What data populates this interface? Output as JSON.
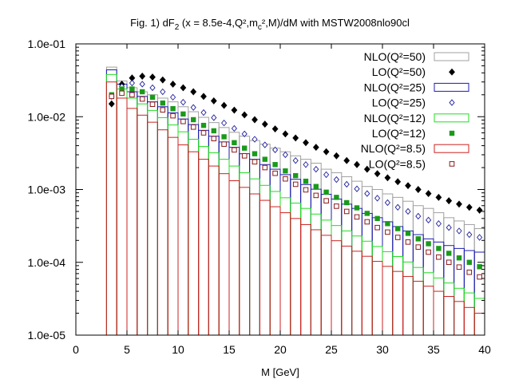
{
  "chart_data": {
    "type": "bar",
    "title": "Fig. 1) dF",
    "title_sub": "2",
    "title_rest": " (x = 8.5e-4,Q²,m",
    "title_sub2": "c",
    "title_end": "²,M)/dM with MSTW2008nlo90cl",
    "xlabel": "M [GeV]",
    "ylabel": "",
    "xlim": [
      0,
      40
    ],
    "ylim": [
      1e-05,
      0.1
    ],
    "y_scale": "log",
    "x_ticks": [
      "0",
      "5",
      "10",
      "15",
      "20",
      "25",
      "30",
      "35",
      "40"
    ],
    "y_ticks": [
      "1.0e-05",
      "1.0e-04",
      "1.0e-03",
      "1.0e-02",
      "1.0e-01"
    ],
    "legend_position": "top-right",
    "bin_edges": [
      3,
      4,
      5,
      6,
      7,
      8,
      9,
      10,
      11,
      12,
      13,
      14,
      15,
      16,
      17,
      18,
      19,
      20,
      21,
      22,
      23,
      24,
      25,
      26,
      27,
      28,
      29,
      30,
      31,
      32,
      33,
      34,
      35,
      36,
      37,
      38,
      39,
      40
    ],
    "lo_x": [
      3.5,
      4.5,
      5.5,
      6.5,
      7.5,
      8.5,
      9.5,
      10.5,
      11.5,
      12.5,
      13.5,
      14.5,
      15.5,
      16.5,
      17.5,
      18.5,
      19.5,
      20.5,
      21.5,
      22.5,
      23.5,
      24.5,
      25.5,
      26.5,
      27.5,
      28.5,
      29.5,
      30.5,
      31.5,
      32.5,
      33.5,
      34.5,
      35.5,
      36.5,
      37.5,
      38.5,
      39.5
    ],
    "series": [
      {
        "name": "NLO(Q²=50)",
        "kind": "nlo",
        "color": "#a0a0a0",
        "values": [
          0.048,
          0.031,
          0.025,
          0.022,
          0.02,
          0.018,
          0.016,
          0.0137,
          0.0117,
          0.0098,
          0.0083,
          0.0071,
          0.0061,
          0.0054,
          0.0047,
          0.0042,
          0.0037,
          0.0033,
          0.0029,
          0.0026,
          0.0023,
          0.0019,
          0.0017,
          0.0015,
          0.0013,
          0.0011,
          0.001,
          0.00087,
          0.00078,
          0.00069,
          0.0006,
          0.00055,
          0.00048,
          0.00041,
          0.00037,
          0.00033,
          0.00029
        ]
      },
      {
        "name": "LO(Q²=50)",
        "kind": "lo",
        "marker": "diamond-filled",
        "color": "#000000",
        "values": [
          0.015,
          0.028,
          0.034,
          0.036,
          0.035,
          0.032,
          0.028,
          0.025,
          0.022,
          0.019,
          0.0165,
          0.0143,
          0.0123,
          0.0106,
          0.0091,
          0.0079,
          0.0068,
          0.0058,
          0.0051,
          0.0044,
          0.0038,
          0.0033,
          0.0029,
          0.0025,
          0.0022,
          0.0019,
          0.00165,
          0.00145,
          0.00128,
          0.00113,
          0.001,
          0.00088,
          0.00078,
          0.0007,
          0.00063,
          0.00057,
          0.00052
        ]
      },
      {
        "name": "NLO(Q²=25)",
        "kind": "nlo",
        "color": "#1c1cb0",
        "values": [
          0.044,
          0.028,
          0.022,
          0.019,
          0.016,
          0.0137,
          0.0113,
          0.0093,
          0.0078,
          0.0065,
          0.0054,
          0.0045,
          0.0038,
          0.0031,
          0.0026,
          0.0022,
          0.0019,
          0.0016,
          0.00138,
          0.00117,
          0.00101,
          0.00086,
          0.00074,
          0.00063,
          0.00055,
          0.00047,
          0.00041,
          0.00036,
          0.00031,
          0.00027,
          0.00024,
          0.00021,
          0.00019,
          0.00017,
          0.000155,
          0.000145,
          0.000138
        ]
      },
      {
        "name": "LO(Q²=25)",
        "kind": "lo",
        "marker": "diamond-open",
        "color": "#2020a0",
        "values": [
          0.019,
          0.026,
          0.029,
          0.028,
          0.025,
          0.022,
          0.0185,
          0.0158,
          0.0134,
          0.0114,
          0.0097,
          0.0082,
          0.0069,
          0.0058,
          0.0049,
          0.0041,
          0.0035,
          0.003,
          0.0025,
          0.0022,
          0.0019,
          0.0016,
          0.00137,
          0.00118,
          0.00102,
          0.00088,
          0.00076,
          0.00066,
          0.00057,
          0.0005,
          0.00043,
          0.00038,
          0.00034,
          0.0003,
          0.00027,
          0.00024,
          0.00022
        ]
      },
      {
        "name": "NLO(Q²=12)",
        "kind": "nlo",
        "color": "#22dd22",
        "values": [
          0.038,
          0.024,
          0.018,
          0.015,
          0.0122,
          0.0097,
          0.0077,
          0.0062,
          0.0049,
          0.0039,
          0.0032,
          0.0026,
          0.0021,
          0.0017,
          0.0014,
          0.00114,
          0.00094,
          0.00077,
          0.00065,
          0.00055,
          0.00046,
          0.00038,
          0.00032,
          0.00027,
          0.00023,
          0.000195,
          0.000165,
          0.00014,
          0.00012,
          0.000101,
          8.5e-05,
          7.2e-05,
          6.1e-05,
          5.2e-05,
          4.4e-05,
          3.8e-05,
          3.2e-05
        ]
      },
      {
        "name": "LO(Q²=12)",
        "kind": "lo",
        "marker": "square-filled",
        "color": "#1a9a1a",
        "values": [
          0.02,
          0.024,
          0.024,
          0.022,
          0.0185,
          0.0154,
          0.0129,
          0.0109,
          0.0091,
          0.0076,
          0.0064,
          0.0053,
          0.0044,
          0.0037,
          0.0031,
          0.0026,
          0.0022,
          0.0018,
          0.00155,
          0.0013,
          0.0011,
          0.00092,
          0.00078,
          0.00066,
          0.00056,
          0.00047,
          0.0004,
          0.00034,
          0.00029,
          0.00025,
          0.00021,
          0.00018,
          0.000155,
          0.000133,
          0.000115,
          0.0001,
          8.7e-05
        ]
      },
      {
        "name": "NLO(Q²=8.5)",
        "kind": "nlo",
        "color": "#cc2222",
        "values": [
          0.03,
          0.018,
          0.013,
          0.0105,
          0.0084,
          0.0066,
          0.0052,
          0.0041,
          0.0033,
          0.0026,
          0.0021,
          0.00165,
          0.00132,
          0.00107,
          0.00087,
          0.00071,
          0.00058,
          0.00048,
          0.0004,
          0.00033,
          0.00028,
          0.000235,
          0.000198,
          0.000167,
          0.000142,
          0.000121,
          0.000103,
          8.8e-05,
          7.5e-05,
          6.4e-05,
          5.5e-05,
          4.7e-05,
          4e-05,
          3.4e-05,
          2.9e-05,
          2.4e-05,
          2e-05
        ]
      },
      {
        "name": "LO(Q²=8.5)",
        "kind": "lo",
        "marker": "square-open",
        "color": "#8b1a1a",
        "values": [
          0.019,
          0.021,
          0.02,
          0.0175,
          0.0148,
          0.0124,
          0.0103,
          0.0086,
          0.0072,
          0.006,
          0.005,
          0.0042,
          0.0035,
          0.0029,
          0.0024,
          0.002,
          0.00167,
          0.0014,
          0.00118,
          0.00099,
          0.00083,
          0.0007,
          0.00059,
          0.0005,
          0.00042,
          0.00036,
          0.0003,
          0.00026,
          0.00022,
          0.00019,
          0.000162,
          0.000138,
          0.000118,
          0.0001,
          8.6e-05,
          7.3e-05,
          6.3e-05
        ]
      }
    ]
  }
}
